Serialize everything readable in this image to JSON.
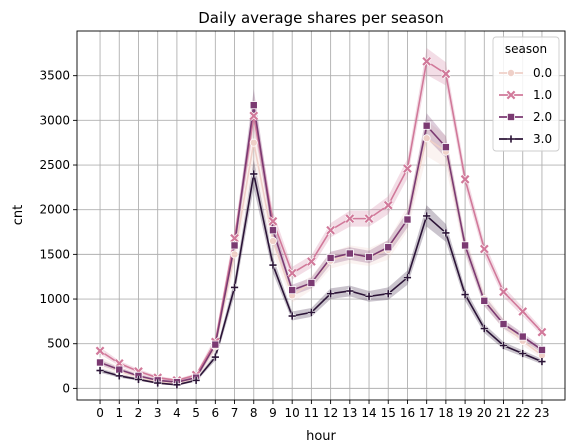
{
  "chart_data": {
    "type": "line",
    "title": "Daily average shares per season",
    "xlabel": "hour",
    "ylabel": "cnt",
    "x": [
      0,
      1,
      2,
      3,
      4,
      5,
      6,
      7,
      8,
      9,
      10,
      11,
      12,
      13,
      14,
      15,
      16,
      17,
      18,
      19,
      20,
      21,
      22,
      23
    ],
    "xlim": [
      -1.2,
      24.2
    ],
    "ylim": [
      -130,
      4000
    ],
    "yticks": [
      0,
      500,
      1000,
      1500,
      2000,
      2500,
      3000,
      3500
    ],
    "grid": true,
    "legend": {
      "title": "season",
      "placement": "top-right"
    },
    "series": [
      {
        "name": "0.0",
        "color": "#efd0c8",
        "marker": "circle",
        "values": [
          300,
          190,
          130,
          70,
          55,
          120,
          470,
          1500,
          2750,
          1650,
          1040,
          1180,
          1430,
          1500,
          1470,
          1550,
          1900,
          2800,
          2650,
          1600,
          1000,
          720,
          530,
          370
        ],
        "band": [
          60,
          50,
          40,
          30,
          20,
          30,
          60,
          120,
          240,
          140,
          80,
          80,
          90,
          100,
          100,
          110,
          140,
          200,
          180,
          120,
          80,
          60,
          50,
          40
        ]
      },
      {
        "name": "1.0",
        "color": "#d1799a",
        "marker": "x",
        "values": [
          420,
          280,
          190,
          120,
          90,
          150,
          520,
          1680,
          3050,
          1870,
          1290,
          1420,
          1770,
          1900,
          1900,
          2050,
          2460,
          3660,
          3520,
          2340,
          1560,
          1080,
          860,
          630
        ],
        "band": [
          40,
          30,
          25,
          20,
          15,
          20,
          60,
          100,
          150,
          110,
          70,
          70,
          80,
          90,
          90,
          100,
          110,
          150,
          130,
          100,
          80,
          60,
          50,
          40
        ]
      },
      {
        "name": "2.0",
        "color": "#7b3a72",
        "marker": "square",
        "values": [
          290,
          210,
          140,
          90,
          70,
          120,
          490,
          1600,
          3170,
          1770,
          1100,
          1180,
          1460,
          1510,
          1470,
          1580,
          1890,
          2940,
          2700,
          1600,
          980,
          720,
          580,
          430
        ],
        "band": [
          30,
          25,
          20,
          15,
          15,
          20,
          50,
          100,
          180,
          100,
          60,
          60,
          70,
          70,
          70,
          80,
          90,
          140,
          120,
          80,
          60,
          50,
          40,
          35
        ]
      },
      {
        "name": "3.0",
        "color": "#2b1437",
        "marker": "plus",
        "values": [
          200,
          140,
          100,
          60,
          40,
          90,
          350,
          1130,
          2400,
          1380,
          810,
          850,
          1060,
          1090,
          1030,
          1060,
          1240,
          1930,
          1740,
          1050,
          670,
          480,
          390,
          300
        ],
        "band": [
          25,
          20,
          15,
          10,
          10,
          15,
          40,
          90,
          160,
          90,
          50,
          50,
          60,
          60,
          60,
          70,
          80,
          120,
          100,
          70,
          50,
          40,
          35,
          30
        ]
      }
    ]
  }
}
